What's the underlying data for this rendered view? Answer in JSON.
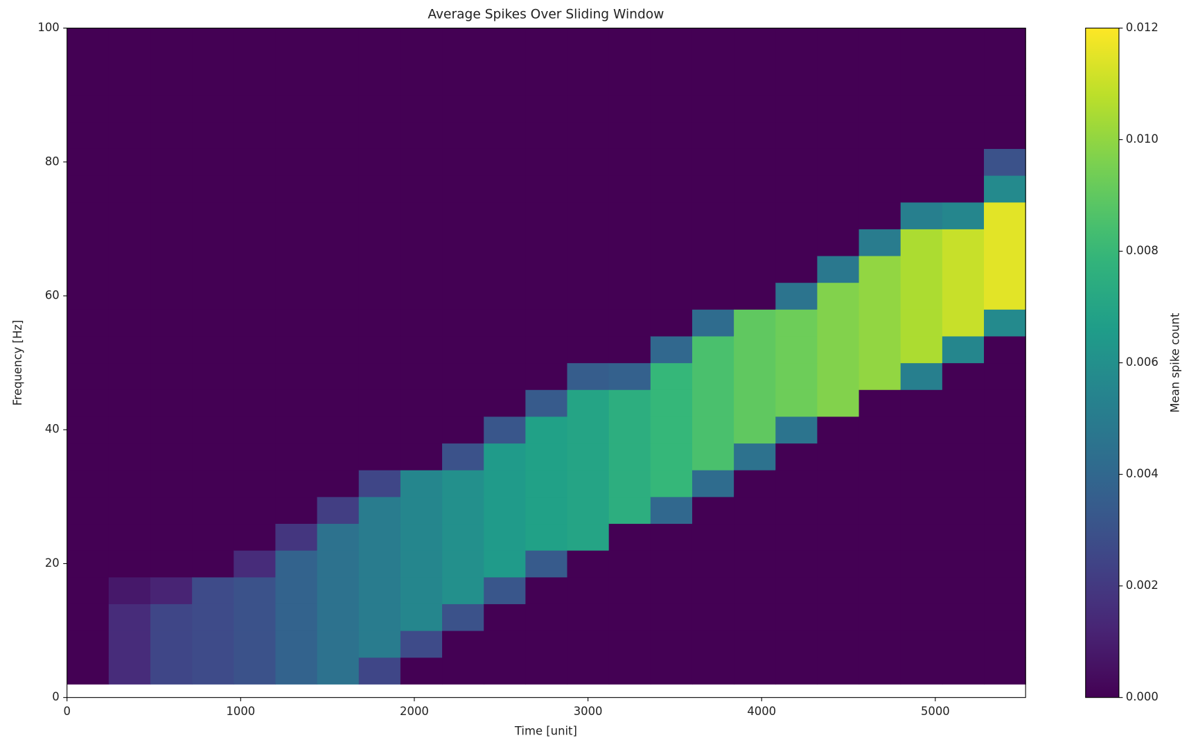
{
  "chart_data": {
    "type": "heatmap",
    "title": "Average Spikes Over Sliding Window",
    "x_label": "Time [unit]",
    "y_label": "Frequency [Hz]",
    "colorbar_label": "Mean spike count",
    "colormap": "viridis",
    "x_edges": [
      0,
      240,
      480,
      720,
      960,
      1200,
      1440,
      1680,
      1920,
      2160,
      2400,
      2640,
      2880,
      3120,
      3360,
      3600,
      3840,
      4080,
      4320,
      4560,
      4800,
      5040,
      5280,
      5520
    ],
    "y_edges": [
      2,
      6,
      10,
      14,
      18,
      22,
      26,
      30,
      34,
      38,
      42,
      46,
      50,
      54,
      58,
      62,
      66,
      70,
      74,
      78,
      82,
      86,
      90,
      94,
      98,
      100
    ],
    "values": [
      [
        0,
        0,
        0,
        0,
        0,
        0,
        0,
        0,
        0,
        0,
        0,
        0,
        0,
        0,
        0,
        0,
        0,
        0,
        0,
        0,
        0,
        0,
        0,
        0,
        0
      ],
      [
        0.0015,
        0.0015,
        0.0015,
        0.0008,
        0,
        0,
        0,
        0,
        0,
        0,
        0,
        0,
        0,
        0,
        0,
        0,
        0,
        0,
        0,
        0,
        0,
        0,
        0,
        0,
        0
      ],
      [
        0.0025,
        0.0025,
        0.0025,
        0.0012,
        0,
        0,
        0,
        0,
        0,
        0,
        0,
        0,
        0,
        0,
        0,
        0,
        0,
        0,
        0,
        0,
        0,
        0,
        0,
        0,
        0
      ],
      [
        0.0027,
        0.0027,
        0.0027,
        0.0027,
        0,
        0,
        0,
        0,
        0,
        0,
        0,
        0,
        0,
        0,
        0,
        0,
        0,
        0,
        0,
        0,
        0,
        0,
        0,
        0,
        0
      ],
      [
        0.003,
        0.003,
        0.003,
        0.003,
        0.0015,
        0,
        0,
        0,
        0,
        0,
        0,
        0,
        0,
        0,
        0,
        0,
        0,
        0,
        0,
        0,
        0,
        0,
        0,
        0,
        0
      ],
      [
        0.0038,
        0.0038,
        0.0038,
        0.0038,
        0.0038,
        0.0019,
        0,
        0,
        0,
        0,
        0,
        0,
        0,
        0,
        0,
        0,
        0,
        0,
        0,
        0,
        0,
        0,
        0,
        0,
        0
      ],
      [
        0.0045,
        0.0045,
        0.0045,
        0.0045,
        0.0045,
        0.0045,
        0.0022,
        0,
        0,
        0,
        0,
        0,
        0,
        0,
        0,
        0,
        0,
        0,
        0,
        0,
        0,
        0,
        0,
        0,
        0
      ],
      [
        0.0025,
        0.005,
        0.005,
        0.005,
        0.005,
        0.005,
        0.005,
        0.0025,
        0,
        0,
        0,
        0,
        0,
        0,
        0,
        0,
        0,
        0,
        0,
        0,
        0,
        0,
        0,
        0,
        0
      ],
      [
        0,
        0.0027,
        0.0055,
        0.0055,
        0.0055,
        0.0055,
        0.0055,
        0.0055,
        0,
        0,
        0,
        0,
        0,
        0,
        0,
        0,
        0,
        0,
        0,
        0,
        0,
        0,
        0,
        0,
        0
      ],
      [
        0,
        0,
        0.003,
        0.006,
        0.006,
        0.006,
        0.006,
        0.006,
        0.003,
        0,
        0,
        0,
        0,
        0,
        0,
        0,
        0,
        0,
        0,
        0,
        0,
        0,
        0,
        0,
        0
      ],
      [
        0,
        0,
        0,
        0.0032,
        0.0065,
        0.0065,
        0.0065,
        0.0065,
        0.0065,
        0.0032,
        0,
        0,
        0,
        0,
        0,
        0,
        0,
        0,
        0,
        0,
        0,
        0,
        0,
        0,
        0
      ],
      [
        0,
        0,
        0,
        0,
        0.0034,
        0.0068,
        0.0068,
        0.0068,
        0.0068,
        0.0068,
        0.0034,
        0,
        0,
        0,
        0,
        0,
        0,
        0,
        0,
        0,
        0,
        0,
        0,
        0,
        0
      ],
      [
        0,
        0,
        0,
        0,
        0,
        0.007,
        0.007,
        0.007,
        0.007,
        0.007,
        0.007,
        0.0035,
        0,
        0,
        0,
        0,
        0,
        0,
        0,
        0,
        0,
        0,
        0,
        0,
        0
      ],
      [
        0,
        0,
        0,
        0,
        0,
        0,
        0.0075,
        0.0075,
        0.0075,
        0.0075,
        0.0075,
        0.0037,
        0,
        0,
        0,
        0,
        0,
        0,
        0,
        0,
        0,
        0,
        0,
        0,
        0
      ],
      [
        0,
        0,
        0,
        0,
        0,
        0,
        0.004,
        0.008,
        0.008,
        0.008,
        0.008,
        0.008,
        0.004,
        0,
        0,
        0,
        0,
        0,
        0,
        0,
        0,
        0,
        0,
        0,
        0
      ],
      [
        0,
        0,
        0,
        0,
        0,
        0,
        0,
        0.0042,
        0.0085,
        0.0085,
        0.0085,
        0.0085,
        0.0085,
        0.0042,
        0,
        0,
        0,
        0,
        0,
        0,
        0,
        0,
        0,
        0,
        0
      ],
      [
        0,
        0,
        0,
        0,
        0,
        0,
        0,
        0,
        0.0045,
        0.009,
        0.009,
        0.009,
        0.009,
        0.009,
        0,
        0,
        0,
        0,
        0,
        0,
        0,
        0,
        0,
        0,
        0
      ],
      [
        0,
        0,
        0,
        0,
        0,
        0,
        0,
        0,
        0,
        0.0046,
        0.0093,
        0.0093,
        0.0093,
        0.0093,
        0.0046,
        0,
        0,
        0,
        0,
        0,
        0,
        0,
        0,
        0,
        0
      ],
      [
        0,
        0,
        0,
        0,
        0,
        0,
        0,
        0,
        0,
        0,
        0.0097,
        0.0097,
        0.0097,
        0.0097,
        0.0097,
        0.0048,
        0,
        0,
        0,
        0,
        0,
        0,
        0,
        0,
        0
      ],
      [
        0,
        0,
        0,
        0,
        0,
        0,
        0,
        0,
        0,
        0,
        0,
        0.01,
        0.01,
        0.01,
        0.01,
        0.01,
        0.005,
        0,
        0,
        0,
        0,
        0,
        0,
        0,
        0
      ],
      [
        0,
        0,
        0,
        0,
        0,
        0,
        0,
        0,
        0,
        0,
        0,
        0.0052,
        0.0105,
        0.0105,
        0.0105,
        0.0105,
        0.0105,
        0.0052,
        0,
        0,
        0,
        0,
        0,
        0,
        0
      ],
      [
        0,
        0,
        0,
        0,
        0,
        0,
        0,
        0,
        0,
        0,
        0,
        0,
        0.0055,
        0.011,
        0.011,
        0.011,
        0.011,
        0.0055,
        0,
        0,
        0,
        0,
        0,
        0,
        0
      ],
      [
        0,
        0,
        0,
        0,
        0,
        0,
        0,
        0,
        0,
        0,
        0,
        0,
        0,
        0.0057,
        0.0115,
        0.0115,
        0.0115,
        0.0115,
        0.0057,
        0.003,
        0,
        0,
        0,
        0,
        0
      ]
    ],
    "xlim": [
      0,
      5520
    ],
    "ylim": [
      0,
      100
    ],
    "clim": [
      0,
      0.012
    ],
    "xticks": [
      0,
      1000,
      2000,
      3000,
      4000,
      5000
    ],
    "yticks": [
      0,
      20,
      40,
      60,
      80,
      100
    ],
    "cticks": [
      {
        "value": 0,
        "label": "0.000"
      },
      {
        "value": 0.002,
        "label": "0.002"
      },
      {
        "value": 0.004,
        "label": "0.004"
      },
      {
        "value": 0.006,
        "label": "0.006"
      },
      {
        "value": 0.008,
        "label": "0.008"
      },
      {
        "value": 0.01,
        "label": "0.010"
      },
      {
        "value": 0.012,
        "label": "0.012"
      }
    ]
  }
}
